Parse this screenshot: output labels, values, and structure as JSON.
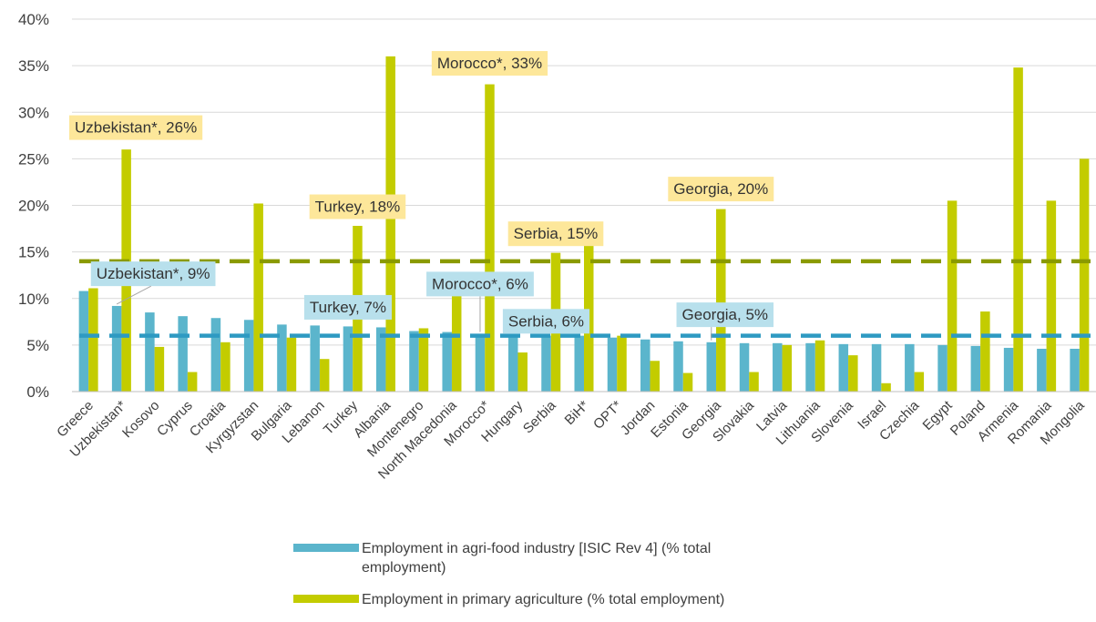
{
  "chart_data": {
    "type": "bar",
    "categories": [
      "Greece",
      "Uzbekistan*",
      "Kosovo",
      "Cyprus",
      "Croatia",
      "Kyrgyzstan",
      "Bulgaria",
      "Lebanon",
      "Turkey",
      "Albania",
      "Montenegro",
      "North Macedonia",
      "Morocco*",
      "Hungary",
      "Serbia",
      "BiH*",
      "OPT*",
      "Jordan",
      "Estonia",
      "Georgia",
      "Slovakia",
      "Latvia",
      "Lithuania",
      "Slovenia",
      "Israel",
      "Czechia",
      "Egypt",
      "Poland",
      "Armenia",
      "Romania",
      "Mongolia"
    ],
    "series": [
      {
        "name": "Employment in agri-food industry [ISIC Rev 4] (% total employment)",
        "color": "#5bb5cc",
        "values": [
          10.8,
          9.2,
          8.5,
          8.1,
          7.9,
          7.7,
          7.2,
          7.1,
          7.0,
          6.9,
          6.5,
          6.4,
          6.2,
          6.1,
          6.0,
          6.0,
          5.8,
          5.6,
          5.4,
          5.3,
          5.2,
          5.2,
          5.2,
          5.1,
          5.1,
          5.1,
          5.0,
          4.9,
          4.7,
          4.6,
          4.6
        ]
      },
      {
        "name": "Employment in primary agriculture (% total employment)",
        "color": "#c3cc00",
        "values": [
          11.1,
          26.0,
          4.8,
          2.1,
          5.3,
          20.2,
          5.8,
          3.5,
          17.8,
          36.0,
          6.8,
          11.2,
          33.0,
          4.2,
          14.9,
          16.7,
          6.0,
          3.3,
          2.0,
          19.6,
          2.1,
          5.0,
          5.5,
          3.9,
          0.9,
          2.1,
          20.5,
          8.6,
          34.8,
          20.5,
          25.0
        ]
      }
    ],
    "reference_lines": [
      {
        "value": 14,
        "color": "#8a9a00",
        "style": "dashed"
      },
      {
        "value": 6,
        "color": "#2e9ac2",
        "style": "dashed"
      }
    ],
    "annotations": [
      {
        "text": "Uzbekistan*, 26%",
        "category": "Uzbekistan*",
        "series": 1,
        "y": 28.4,
        "bg": "#fde79a"
      },
      {
        "text": "Morocco*, 33%",
        "category": "Morocco*",
        "series": 1,
        "y": 35.3,
        "bg": "#fde79a"
      },
      {
        "text": "Turkey, 18%",
        "category": "Turkey",
        "series": 1,
        "y": 19.9,
        "bg": "#fde79a"
      },
      {
        "text": "Georgia, 20%",
        "category": "Georgia",
        "series": 1,
        "y": 21.8,
        "bg": "#fde79a"
      },
      {
        "text": "Serbia, 15%",
        "category": "Serbia",
        "series": 1,
        "y": 17.0,
        "bg": "#fde79a"
      },
      {
        "text": "Uzbekistan*, 9%",
        "category": "Uzbekistan*",
        "series": 0,
        "y": 12.7,
        "bg": "#b8e0ec",
        "leader": true
      },
      {
        "text": "Turkey, 7%",
        "category": "Turkey",
        "series": 0,
        "y": 9.1,
        "bg": "#b8e0ec"
      },
      {
        "text": "Morocco*, 6%",
        "category": "Morocco*",
        "series": 0,
        "y": 11.6,
        "bg": "#b8e0ec",
        "leader": true
      },
      {
        "text": "Serbia, 6%",
        "category": "Serbia",
        "series": 0,
        "y": 7.6,
        "bg": "#b8e0ec"
      },
      {
        "text": "Georgia, 5%",
        "category": "Georgia",
        "series": 0,
        "y": 8.3,
        "bg": "#b8e0ec",
        "leader": true
      }
    ],
    "ylim": [
      0,
      40
    ],
    "yticks": [
      0,
      5,
      10,
      15,
      20,
      25,
      30,
      35,
      40
    ],
    "ytick_labels": [
      "0%",
      "5%",
      "10%",
      "15%",
      "20%",
      "25%",
      "30%",
      "35%",
      "40%"
    ],
    "grid": true,
    "legend_position": "bottom",
    "title": "",
    "xlabel": "",
    "ylabel": ""
  },
  "legend": {
    "items": [
      {
        "label": "Employment in agri-food industry [ISIC Rev 4] (% total employment)",
        "color": "#5bb5cc"
      },
      {
        "label": "Employment in primary agriculture (% total employment)",
        "color": "#c3cc00"
      }
    ]
  }
}
